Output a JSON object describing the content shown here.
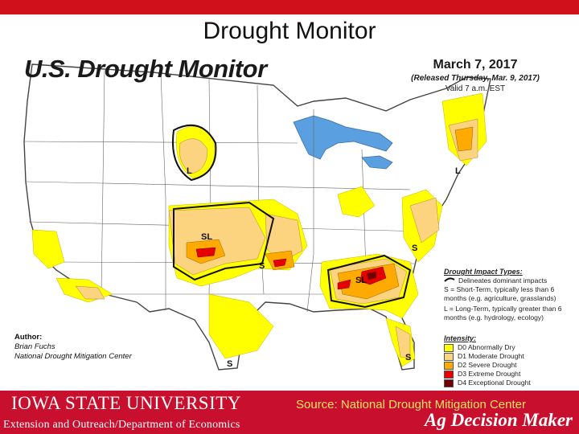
{
  "slide": {
    "title": "Drought Monitor"
  },
  "map": {
    "heading": "U.S. Drought Monitor",
    "date": "March 7, 2017",
    "released": "(Released Thursday, Mar. 9, 2017)",
    "valid": "Valid 7 a.m. EST",
    "author_label": "Author:",
    "author_name": "Brian Fuchs",
    "author_org": "National Drought Mitigation Center",
    "impact": {
      "heading": "Drought Impact Types:",
      "delineates": "Delineates dominant impacts",
      "short_term": "S = Short-Term, typically less than 6 months (e.g. agriculture, grasslands)",
      "long_term": "L = Long-Term, typically greater than 6 months (e.g. hydrology, ecology)"
    },
    "intensity": {
      "heading": "Intensity:",
      "items": [
        {
          "label": "D0 Abnormally Dry",
          "color": "#ffff00"
        },
        {
          "label": "D1 Moderate Drought",
          "color": "#fcd37f"
        },
        {
          "label": "D2 Severe Drought",
          "color": "#ffaa00"
        },
        {
          "label": "D3 Extreme Drought",
          "color": "#e60000"
        },
        {
          "label": "D4 Exceptional Drought",
          "color": "#730000"
        }
      ]
    },
    "region_labels": {
      "l_dakotas": "L",
      "sl_kansas": "SL",
      "s_oklahoma": "S",
      "s_virginia": "S",
      "sl_georgia": "SL",
      "s_texas": "S",
      "s_florida": "S",
      "l_newengland": "L"
    },
    "colors": {
      "water": "#5aa0e0",
      "land": "#ffffff",
      "border": "#444444"
    }
  },
  "footer": {
    "university": "Iowa State University",
    "extension": "Extension and Outreach/Department of Economics",
    "source": "Source: National Drought Mitigation Center",
    "brand": "Ag Decision Maker"
  }
}
